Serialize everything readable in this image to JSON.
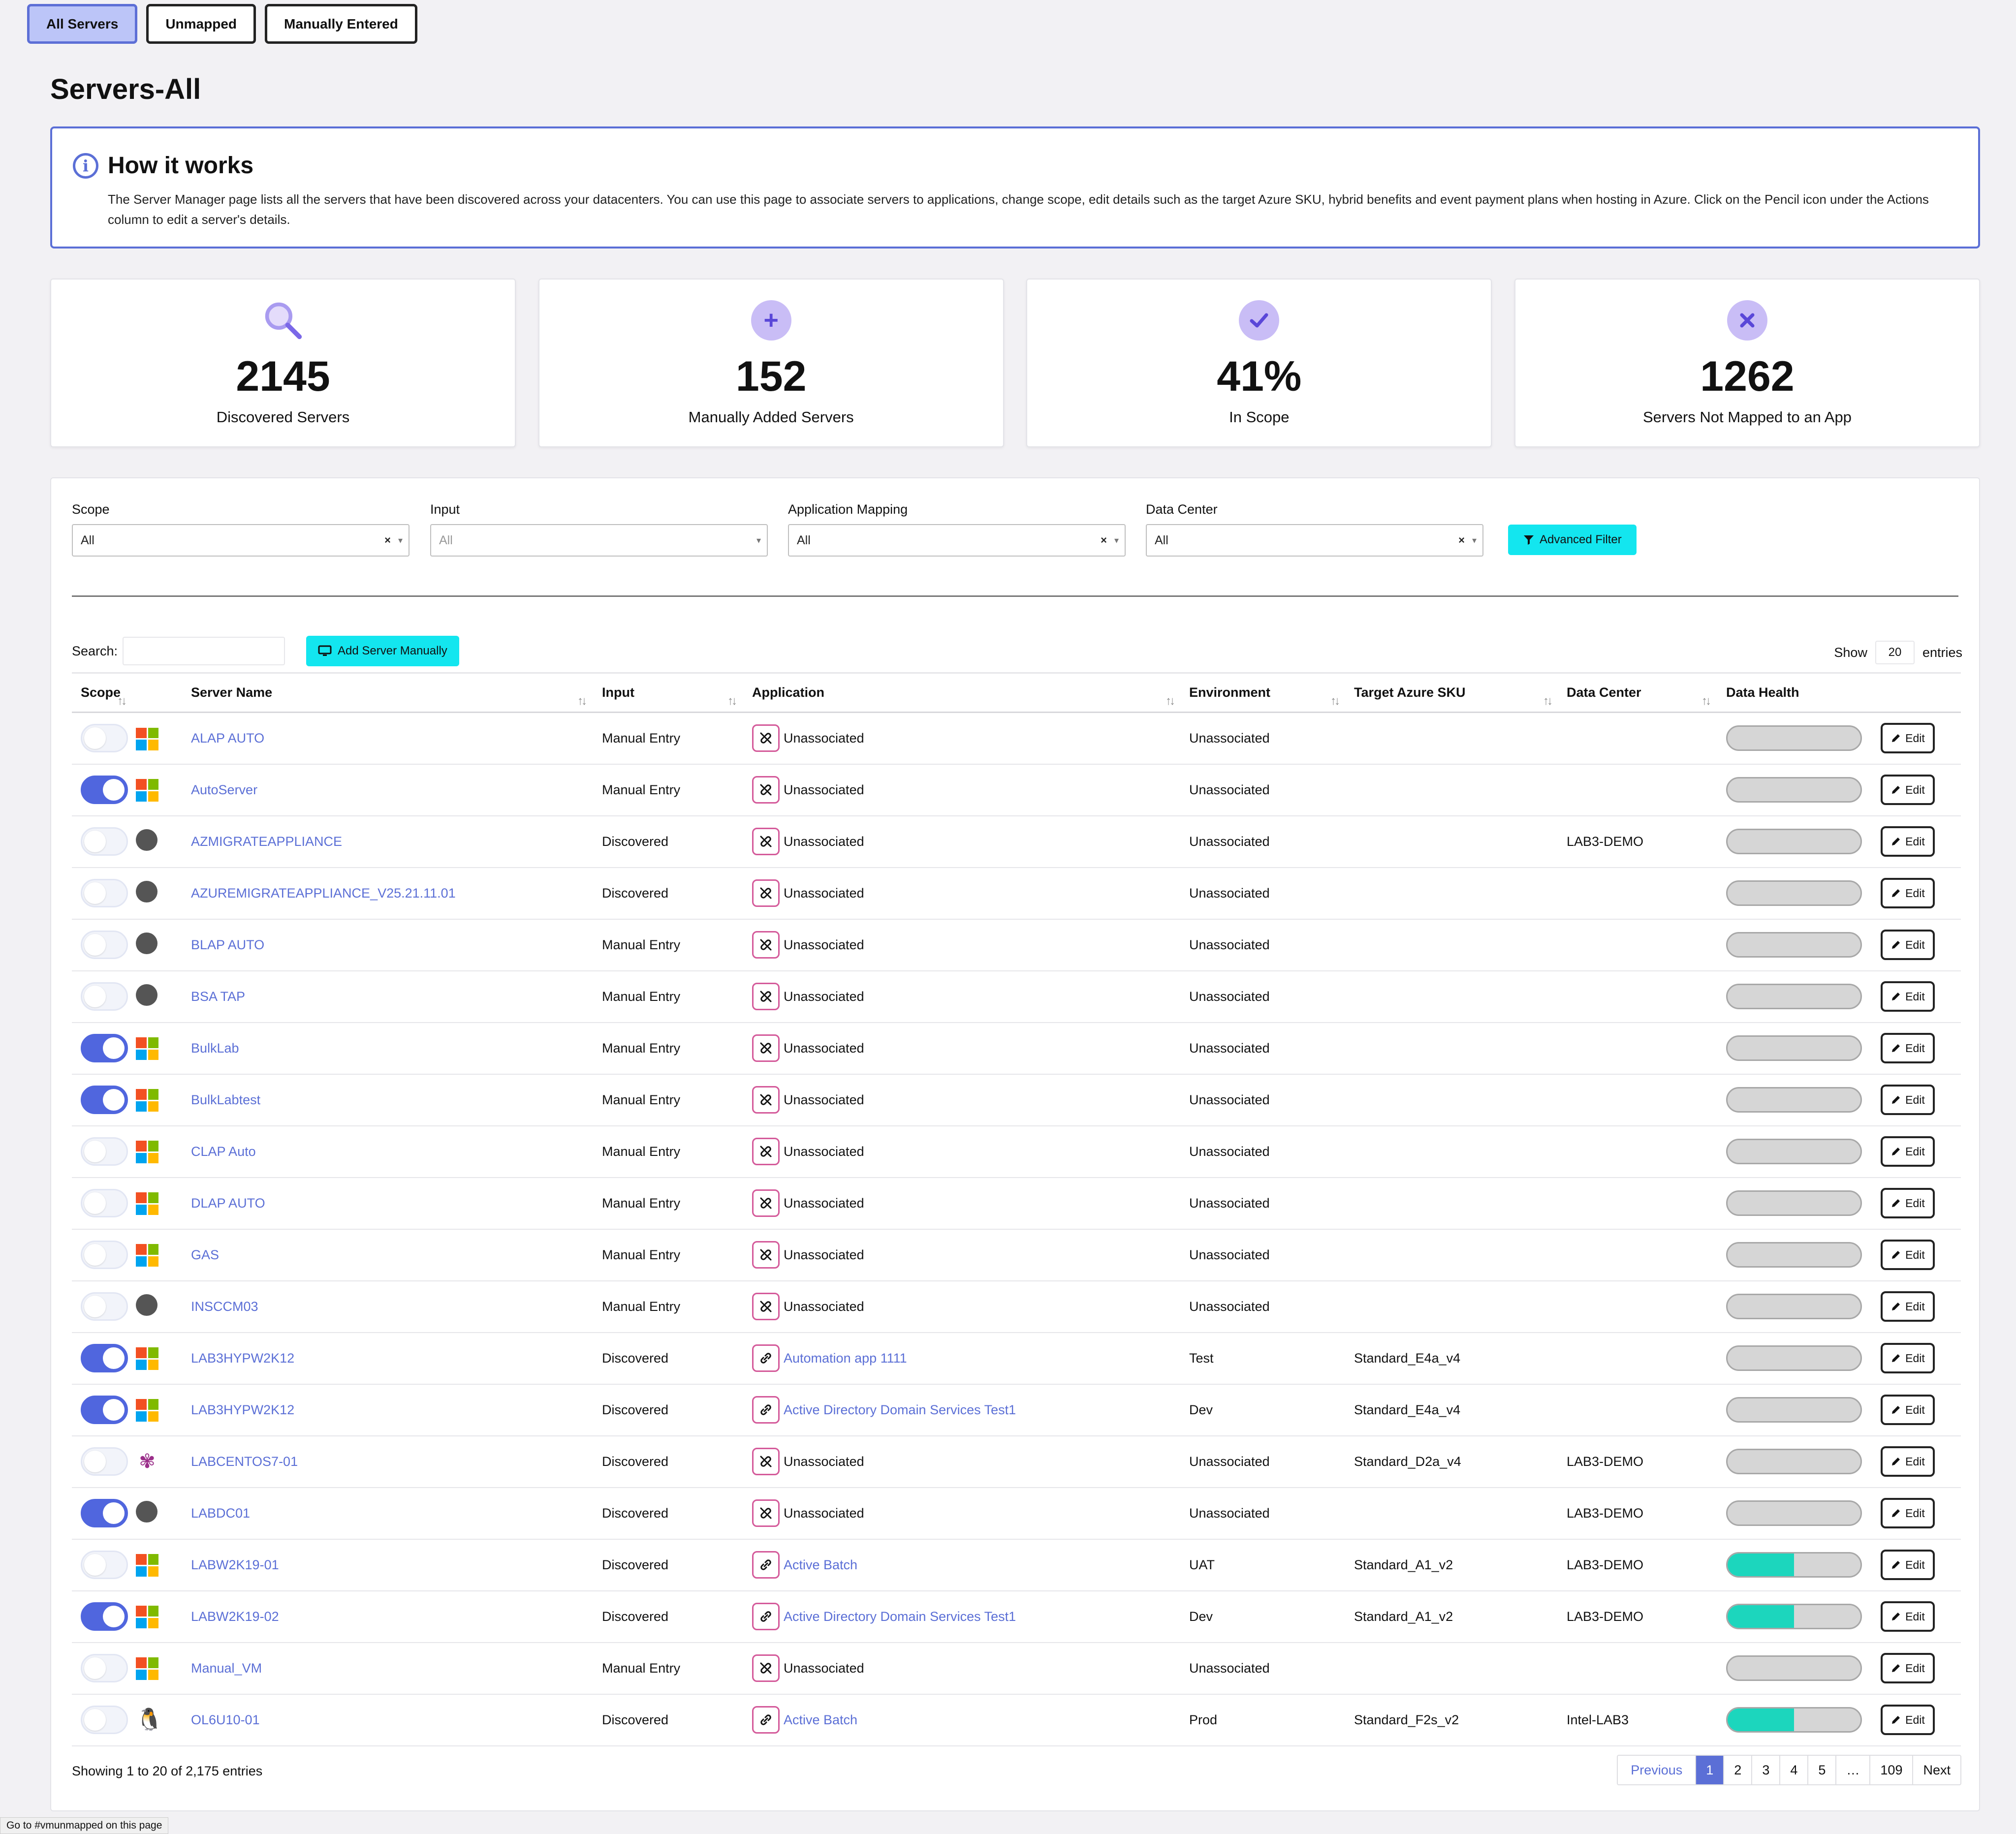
{
  "tabs": [
    {
      "label": "All Servers"
    },
    {
      "label": "Unmapped"
    },
    {
      "label": "Manually Entered"
    }
  ],
  "page_title": "Servers-All",
  "how_it_works": {
    "title": "How it works",
    "icon": "info-icon",
    "text": "The Server Manager page lists all the servers that have been discovered across your datacenters. You can use this page to associate servers to applications, change scope, edit details such as the target Azure SKU, hybrid benefits and event payment plans when hosting in Azure. Click on the Pencil icon under the Actions column to edit a server's details."
  },
  "stats": [
    {
      "icon": "search-icon",
      "value": "2145",
      "label": "Discovered Servers"
    },
    {
      "icon": "plus-icon",
      "value": "152",
      "label": "Manually Added Servers"
    },
    {
      "icon": "check-icon",
      "value": "41%",
      "label": "In Scope"
    },
    {
      "icon": "x-icon",
      "value": "1262",
      "label": "Servers Not Mapped to an App"
    }
  ],
  "filters": [
    {
      "label": "Scope",
      "value": "All",
      "clearable": true
    },
    {
      "label": "Input",
      "value": "All",
      "clearable": false
    },
    {
      "label": "Application Mapping",
      "value": "All",
      "clearable": true
    },
    {
      "label": "Data Center",
      "value": "All",
      "clearable": true
    }
  ],
  "advanced_filter_label": "Advanced Filter",
  "search_label": "Search:",
  "search_value": "",
  "add_server_label": "Add Server Manually",
  "show_label": "Show",
  "page_length": "20",
  "entries_label": "entries",
  "columns": [
    "Scope",
    "Server Name",
    "Input",
    "Application",
    "Environment",
    "Target Azure SKU",
    "Data Center",
    "Data Health"
  ],
  "edit_label": "Edit",
  "rows": [
    {
      "scope_on": false,
      "os": "windows",
      "name": "ALAP AUTO",
      "input": "Manual Entry",
      "app": "Unassociated",
      "app_linked": false,
      "env": "Unassociated",
      "sku": "",
      "dc": "",
      "health": 0
    },
    {
      "scope_on": true,
      "os": "windows",
      "name": "AutoServer",
      "input": "Manual Entry",
      "app": "Unassociated",
      "app_linked": false,
      "env": "Unassociated",
      "sku": "",
      "dc": "",
      "health": 0
    },
    {
      "scope_on": false,
      "os": "unknown",
      "name": "AZMIGRATEAPPLIANCE",
      "input": "Discovered",
      "app": "Unassociated",
      "app_linked": false,
      "env": "Unassociated",
      "sku": "",
      "dc": "LAB3-DEMO",
      "health": 0
    },
    {
      "scope_on": false,
      "os": "unknown",
      "name": "AZUREMIGRATEAPPLIANCE_V25.21.11.01",
      "input": "Discovered",
      "app": "Unassociated",
      "app_linked": false,
      "env": "Unassociated",
      "sku": "",
      "dc": "",
      "health": 0
    },
    {
      "scope_on": false,
      "os": "unknown",
      "name": "BLAP AUTO",
      "input": "Manual Entry",
      "app": "Unassociated",
      "app_linked": false,
      "env": "Unassociated",
      "sku": "",
      "dc": "",
      "health": 0
    },
    {
      "scope_on": false,
      "os": "unknown",
      "name": "BSA TAP",
      "input": "Manual Entry",
      "app": "Unassociated",
      "app_linked": false,
      "env": "Unassociated",
      "sku": "",
      "dc": "",
      "health": 0
    },
    {
      "scope_on": true,
      "os": "windows",
      "name": "BulkLab",
      "input": "Manual Entry",
      "app": "Unassociated",
      "app_linked": false,
      "env": "Unassociated",
      "sku": "",
      "dc": "",
      "health": 0
    },
    {
      "scope_on": true,
      "os": "windows",
      "name": "BulkLabtest",
      "input": "Manual Entry",
      "app": "Unassociated",
      "app_linked": false,
      "env": "Unassociated",
      "sku": "",
      "dc": "",
      "health": 0
    },
    {
      "scope_on": false,
      "os": "windows",
      "name": "CLAP Auto",
      "input": "Manual Entry",
      "app": "Unassociated",
      "app_linked": false,
      "env": "Unassociated",
      "sku": "",
      "dc": "",
      "health": 0
    },
    {
      "scope_on": false,
      "os": "windows",
      "name": "DLAP AUTO",
      "input": "Manual Entry",
      "app": "Unassociated",
      "app_linked": false,
      "env": "Unassociated",
      "sku": "",
      "dc": "",
      "health": 0
    },
    {
      "scope_on": false,
      "os": "windows",
      "name": "GAS",
      "input": "Manual Entry",
      "app": "Unassociated",
      "app_linked": false,
      "env": "Unassociated",
      "sku": "",
      "dc": "",
      "health": 0
    },
    {
      "scope_on": false,
      "os": "unknown",
      "name": "INSCCM03",
      "input": "Manual Entry",
      "app": "Unassociated",
      "app_linked": false,
      "env": "Unassociated",
      "sku": "",
      "dc": "",
      "health": 0
    },
    {
      "scope_on": true,
      "os": "windows",
      "name": "LAB3HYPW2K12",
      "input": "Discovered",
      "app": "Automation app 1111",
      "app_linked": true,
      "env": "Test",
      "sku": "Standard_E4a_v4",
      "dc": "",
      "health": 0
    },
    {
      "scope_on": true,
      "os": "windows",
      "name": "LAB3HYPW2K12",
      "input": "Discovered",
      "app": "Active Directory Domain Services Test1",
      "app_linked": true,
      "env": "Dev",
      "sku": "Standard_E4a_v4",
      "dc": "",
      "health": 0
    },
    {
      "scope_on": false,
      "os": "centos",
      "name": "LABCENTOS7-01",
      "input": "Discovered",
      "app": "Unassociated",
      "app_linked": false,
      "env": "Unassociated",
      "sku": "Standard_D2a_v4",
      "dc": "LAB3-DEMO",
      "health": 0
    },
    {
      "scope_on": true,
      "os": "unknown",
      "name": "LABDC01",
      "input": "Discovered",
      "app": "Unassociated",
      "app_linked": false,
      "env": "Unassociated",
      "sku": "",
      "dc": "LAB3-DEMO",
      "health": 0
    },
    {
      "scope_on": false,
      "os": "windows",
      "name": "LABW2K19-01",
      "input": "Discovered",
      "app": "Active Batch",
      "app_linked": true,
      "env": "UAT",
      "sku": "Standard_A1_v2",
      "dc": "LAB3-DEMO",
      "health": 50
    },
    {
      "scope_on": true,
      "os": "windows",
      "name": "LABW2K19-02",
      "input": "Discovered",
      "app": "Active Directory Domain Services Test1",
      "app_linked": true,
      "env": "Dev",
      "sku": "Standard_A1_v2",
      "dc": "LAB3-DEMO",
      "health": 50
    },
    {
      "scope_on": false,
      "os": "windows",
      "name": "Manual_VM",
      "input": "Manual Entry",
      "app": "Unassociated",
      "app_linked": false,
      "env": "Unassociated",
      "sku": "",
      "dc": "",
      "health": 0
    },
    {
      "scope_on": false,
      "os": "linux",
      "name": "OL6U10-01",
      "input": "Discovered",
      "app": "Active Batch",
      "app_linked": true,
      "env": "Prod",
      "sku": "Standard_F2s_v2",
      "dc": "Intel-LAB3",
      "health": 50
    }
  ],
  "showing_text": "Showing 1 to 20 of 2,175 entries",
  "pagination": {
    "previous": "Previous",
    "pages": [
      "1",
      "2",
      "3",
      "4",
      "5",
      "…",
      "109"
    ],
    "current": "1",
    "next": "Next"
  },
  "status_bar": "Go to #vmunmapped on this page",
  "colors": {
    "accent": "#5b6fd6",
    "cyan_button": "#13e6ef",
    "health_fill": "#1cd6bd",
    "icon_circle": "#c9bdf6"
  }
}
